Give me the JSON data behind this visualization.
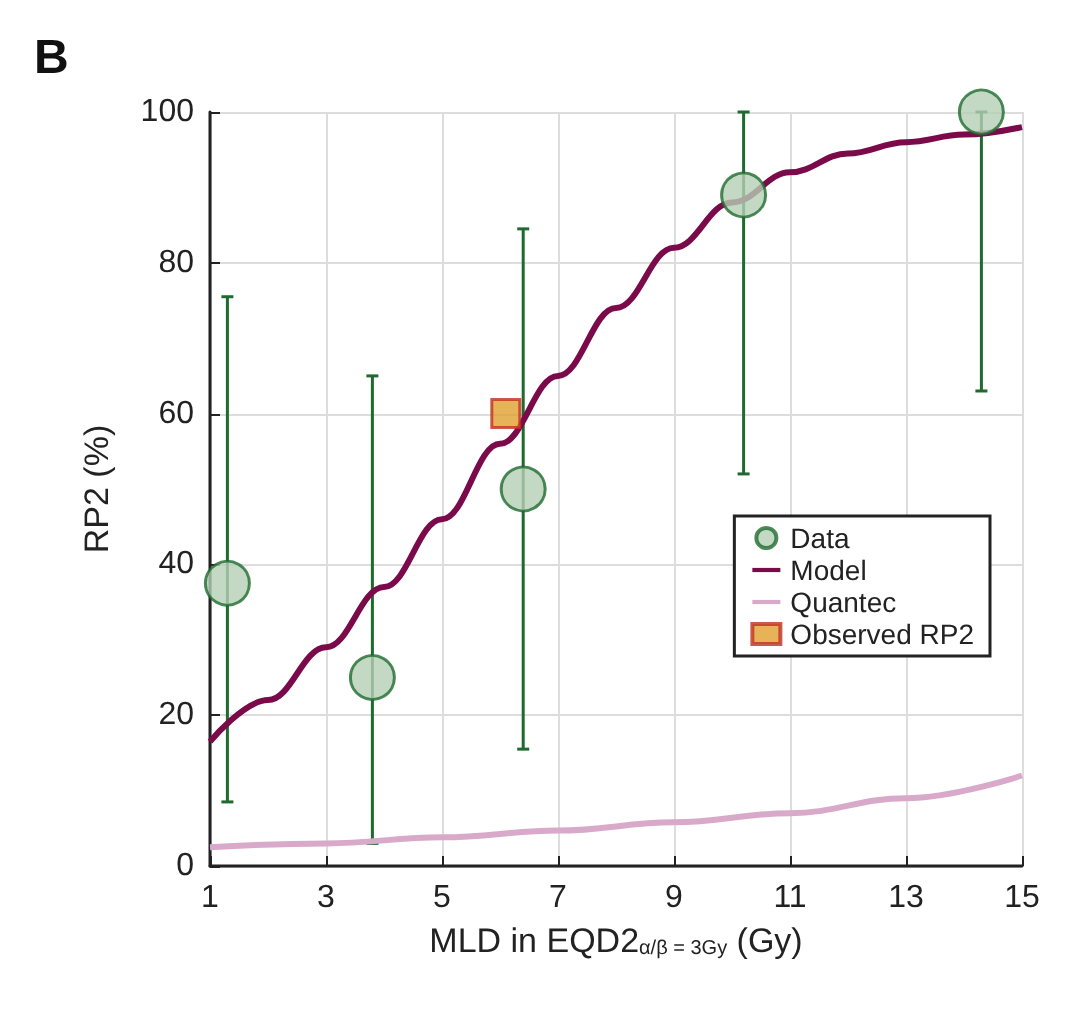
{
  "chart_data": {
    "type": "scatter",
    "title": "B",
    "xlabel": "MLD in EQD2$_{α/β = 3Gy}$ (Gy)",
    "ylabel": "RP2 (%)",
    "xlim": [
      1,
      15
    ],
    "xticks": [
      1,
      3,
      5,
      7,
      9,
      11,
      13,
      15
    ],
    "ylim": [
      0,
      100
    ],
    "yticks": [
      0,
      20,
      40,
      60,
      80,
      100
    ],
    "grid": true,
    "legend": "right",
    "series": [
      {
        "name": "Data",
        "marker": "circle",
        "color": "#b5cfb5",
        "x": [
          1.3,
          3.8,
          6.4,
          10.2,
          14.3
        ],
        "values": [
          37.5,
          25,
          50,
          89,
          100
        ],
        "errors": [
          [
            8.5,
            75.5
          ],
          [
            3,
            65
          ],
          [
            15.5,
            84.5
          ],
          [
            52,
            100
          ],
          [
            63,
            100
          ]
        ]
      },
      {
        "name": "Model",
        "type": "line",
        "marker": "none",
        "color": "#7a0a4a",
        "x": [
          1,
          2,
          3,
          4,
          5,
          6,
          7,
          8,
          9,
          10,
          11,
          12,
          13,
          14,
          15
        ],
        "values": [
          16.5,
          22,
          29,
          37,
          46,
          56,
          65,
          74,
          82,
          88,
          92,
          94.5,
          96,
          97,
          98
        ]
      },
      {
        "name": "Quantec",
        "type": "line",
        "marker": "none",
        "color": "#d9a9c9",
        "x": [
          1,
          3,
          5,
          7,
          9,
          11,
          13,
          15
        ],
        "values": [
          2.5,
          3,
          3.8,
          4.7,
          5.8,
          7,
          9,
          12
        ]
      },
      {
        "name": "Observed RP2",
        "marker": "square",
        "color": "#e0a030",
        "x": [
          6.1
        ],
        "values": [
          60
        ]
      }
    ]
  }
}
